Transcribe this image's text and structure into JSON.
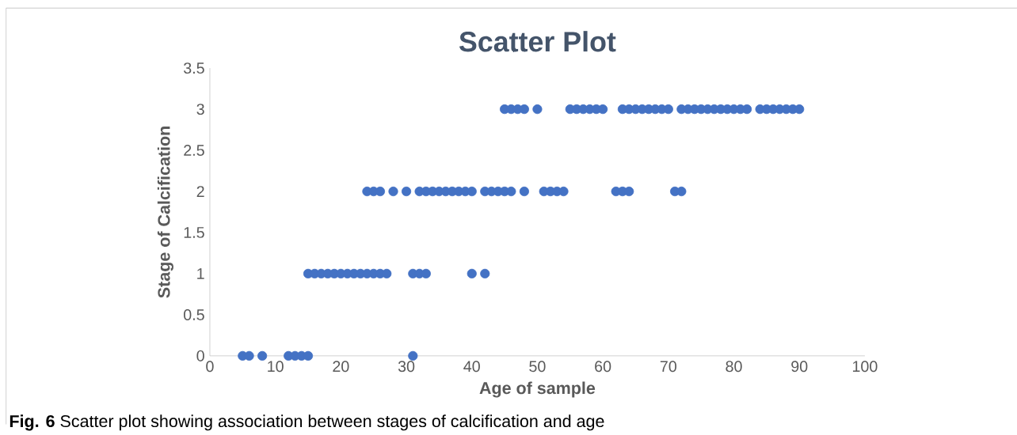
{
  "chart_data": {
    "type": "scatter",
    "title": "Scatter Plot",
    "xlabel": "Age of sample",
    "ylabel": "Stage of Calcification",
    "annotations": [
      "**Fig. 6** Scatter plot showing association between stages of calcification and age"
    ],
    "x": [
      5,
      6,
      8,
      12,
      13,
      14,
      15,
      31,
      15,
      16,
      17,
      18,
      19,
      20,
      21,
      22,
      23,
      24,
      25,
      26,
      27,
      31,
      32,
      33,
      40,
      42,
      24,
      25,
      26,
      28,
      30,
      32,
      33,
      34,
      35,
      36,
      37,
      38,
      39,
      40,
      42,
      43,
      44,
      45,
      46,
      48,
      51,
      52,
      53,
      54,
      62,
      63,
      64,
      71,
      72,
      45,
      46,
      47,
      48,
      50,
      55,
      56,
      57,
      58,
      59,
      60,
      63,
      64,
      65,
      66,
      67,
      68,
      69,
      70,
      72,
      73,
      74,
      75,
      76,
      77,
      78,
      79,
      80,
      81,
      82,
      84,
      85,
      86,
      87,
      88,
      89,
      90
    ],
    "values": [
      0,
      0,
      0,
      0,
      0,
      0,
      0,
      0,
      1,
      1,
      1,
      1,
      1,
      1,
      1,
      1,
      1,
      1,
      1,
      1,
      1,
      1,
      1,
      1,
      1,
      1,
      2,
      2,
      2,
      2,
      2,
      2,
      2,
      2,
      2,
      2,
      2,
      2,
      2,
      2,
      2,
      2,
      2,
      2,
      2,
      2,
      2,
      2,
      2,
      2,
      2,
      2,
      2,
      2,
      2,
      3,
      3,
      3,
      3,
      3,
      3,
      3,
      3,
      3,
      3,
      3,
      3,
      3,
      3,
      3,
      3,
      3,
      3,
      3,
      3,
      3,
      3,
      3,
      3,
      3,
      3,
      3,
      3,
      3,
      3,
      3,
      3,
      3,
      3,
      3,
      3,
      3
    ],
    "color": "#4472c4",
    "grid": false,
    "xlim": [
      0,
      100
    ],
    "xticks": [
      0,
      10,
      20,
      30,
      40,
      50,
      60,
      70,
      80,
      90,
      100
    ],
    "ylim": [
      0,
      3.5
    ],
    "yticks": [
      0,
      0.5,
      1,
      1.5,
      2,
      2.5,
      3,
      3.5
    ]
  }
}
